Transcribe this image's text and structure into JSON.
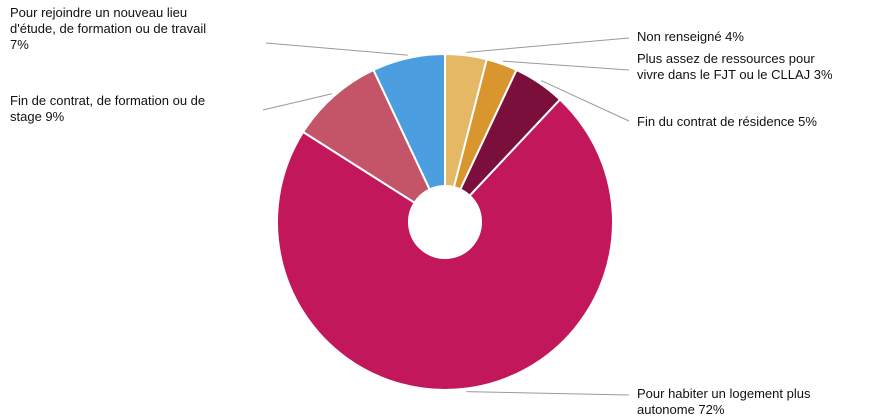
{
  "chart_data": {
    "type": "pie",
    "donut": true,
    "title": "",
    "slices": [
      {
        "label": "Non renseigné 4%",
        "value": 4,
        "color": "#E5B866"
      },
      {
        "label": "Plus assez de ressources pour vivre dans le FJT ou le CLLAJ 3%",
        "value": 3,
        "color": "#D9962E"
      },
      {
        "label": "Fin du contrat de résidence 5%",
        "value": 5,
        "color": "#7A0F3C"
      },
      {
        "label": "Pour habiter un logement plus autonome 72%",
        "value": 72,
        "color": "#C2185B"
      },
      {
        "label": "Fin de contrat, de formation ou de stage 9%",
        "value": 9,
        "color": "#C45468"
      },
      {
        "label": "Pour rejoindre un nouveau lieu d'étude, de formation ou de travail 7%",
        "value": 7,
        "color": "#4B9FE1"
      }
    ],
    "label_lines": [
      [
        "Non renseigné 4%"
      ],
      [
        "Plus assez de ressources pour",
        "vivre dans le FJT ou le CLLAJ 3%"
      ],
      [
        "Fin du contrat de résidence 5%"
      ],
      [
        "Pour habiter un logement plus",
        "autonome 72%"
      ],
      [
        "Fin de contrat, de formation ou de",
        "stage 9%"
      ],
      [
        "Pour rejoindre un nouveau lieu",
        "d'étude, de formation ou de travail",
        "7%"
      ]
    ],
    "legend": "none"
  }
}
